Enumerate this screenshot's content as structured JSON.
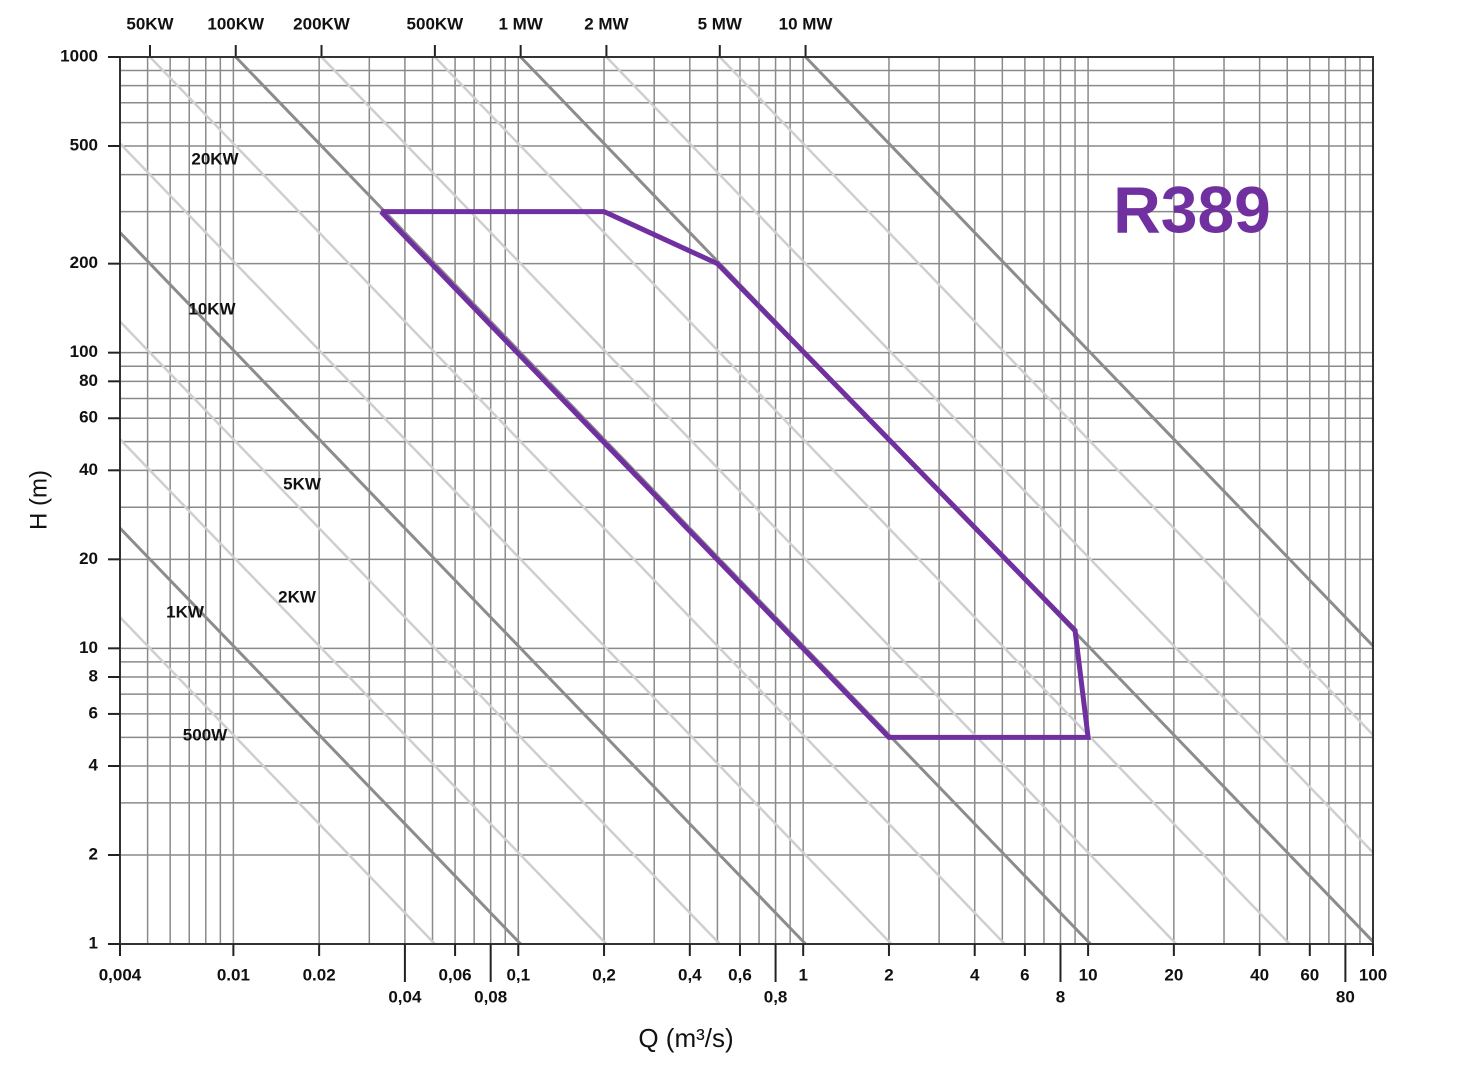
{
  "chart_data": {
    "type": "line",
    "x_label": "Q (m³/s)",
    "y_label": "H (m)",
    "log_x": true,
    "log_y": true,
    "grid": true,
    "xlim": [
      0.004,
      100
    ],
    "ylim": [
      1,
      1000
    ],
    "xticks": [
      {
        "value": 0.004,
        "label": "0,004"
      },
      0.01,
      0.02,
      {
        "value": 0.04,
        "label": "0,04"
      },
      {
        "value": 0.06,
        "label": "0,06"
      },
      {
        "value": 0.08,
        "label": "0,08"
      },
      {
        "value": 0.1,
        "label": "0,1"
      },
      {
        "value": 0.2,
        "label": "0,2"
      },
      {
        "value": 0.4,
        "label": "0,4"
      },
      {
        "value": 0.6,
        "label": "0,6"
      },
      {
        "value": 0.8,
        "label": "0,8"
      },
      1,
      2,
      4,
      6,
      8,
      10,
      20,
      40,
      60,
      80,
      100
    ],
    "yticks": [
      1,
      2,
      4,
      6,
      8,
      10,
      20,
      40,
      60,
      80,
      100,
      200,
      500,
      1000
    ],
    "xgrid": [
      0.004,
      0.005,
      0.006,
      0.007,
      0.008,
      0.009,
      0.01,
      0.02,
      0.03,
      0.04,
      0.05,
      0.06,
      0.07,
      0.08,
      0.09,
      0.1,
      0.2,
      0.3,
      0.4,
      0.5,
      0.6,
      0.7,
      0.8,
      0.9,
      1,
      2,
      3,
      4,
      5,
      6,
      7,
      8,
      9,
      10,
      20,
      30,
      40,
      50,
      60,
      70,
      80,
      90,
      100
    ],
    "ygrid": [
      1,
      2,
      3,
      4,
      5,
      6,
      7,
      8,
      9,
      10,
      20,
      30,
      40,
      50,
      60,
      70,
      80,
      90,
      100,
      200,
      300,
      400,
      500,
      600,
      700,
      800,
      900,
      1000
    ],
    "power_lines": {
      "values": [
        0.5,
        1,
        2,
        5,
        10,
        20,
        50,
        100,
        200,
        500,
        1000,
        2000,
        5000,
        10000
      ],
      "labels": [
        "500W",
        "1KW",
        "2KW",
        "5KW",
        "10KW",
        "20KW",
        "50KW",
        "100KW",
        "200KW",
        "500KW",
        "1 MW",
        "2 MW",
        "5 MW",
        "10 MW"
      ],
      "colors": {
        "major": "#8c8c8c",
        "minor": "#cfcfcf"
      }
    },
    "series": [
      {
        "name": "R389",
        "color": "#7030a0",
        "x": [
          0.033,
          0.2,
          0.5,
          9,
          10,
          2,
          0.033
        ],
        "values": [
          300,
          300,
          200,
          11.5,
          5,
          5,
          300
        ]
      }
    ]
  }
}
